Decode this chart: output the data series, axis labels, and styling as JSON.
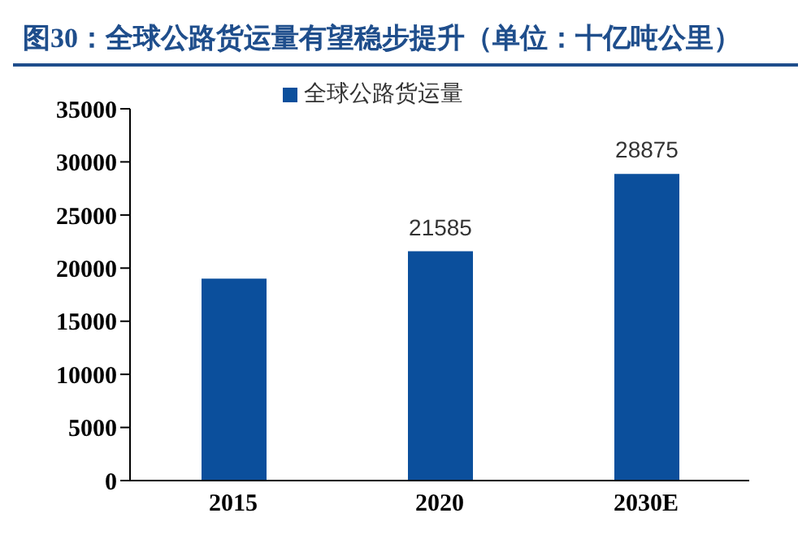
{
  "chart_data": {
    "type": "bar",
    "title": "图30：全球公路货运量有望稳步提升（单位：十亿吨公里）",
    "categories": [
      "2015",
      "2020",
      "2030E"
    ],
    "series": [
      {
        "name": "全球公路货运量",
        "color": "#0b4f9c",
        "values": [
          19000,
          21585,
          28875
        ],
        "value_labels": [
          null,
          "21585",
          "28875"
        ]
      }
    ],
    "ylim": [
      0,
      35000
    ],
    "yticks": [
      0,
      5000,
      10000,
      15000,
      20000,
      25000,
      30000,
      35000
    ],
    "grid": false,
    "legend": "top"
  }
}
